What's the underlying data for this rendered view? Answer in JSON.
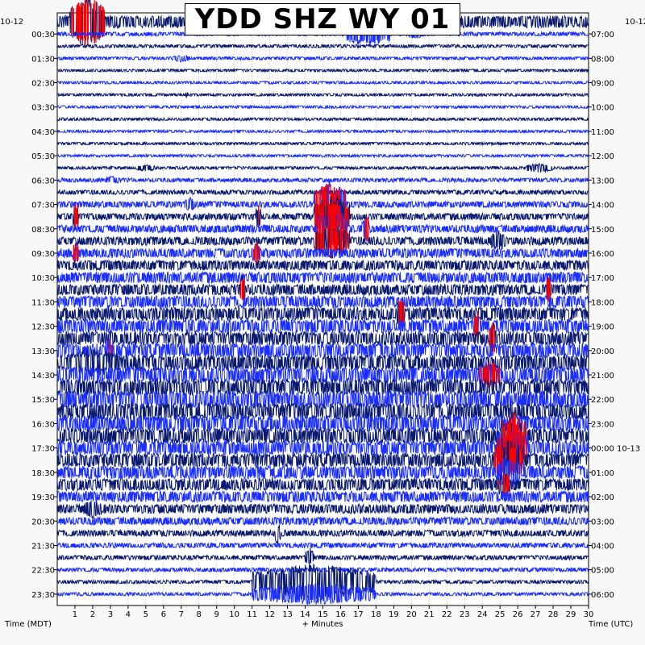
{
  "chart_data": {
    "type": "heatmap",
    "title": "YDD SHZ WY 01",
    "xlabel": "+ Minutes",
    "left_axis_label": "Time (MDT)",
    "right_axis_label": "Time (UTC)",
    "left_date": "10-12",
    "right_date": "10-12",
    "right_date_change": "10-13",
    "x_range": [
      0,
      30
    ],
    "x_ticks": [
      "1",
      "2",
      "3",
      "4",
      "5",
      "6",
      "7",
      "8",
      "9",
      "10",
      "11",
      "12",
      "13",
      "14",
      "15",
      "16",
      "17",
      "18",
      "19",
      "20",
      "21",
      "22",
      "23",
      "24",
      "25",
      "26",
      "27",
      "28",
      "29",
      "30"
    ],
    "left_ticks": [
      "00:30",
      "01:30",
      "02:30",
      "03:30",
      "04:30",
      "05:30",
      "06:30",
      "07:30",
      "08:30",
      "09:30",
      "10:30",
      "11:30",
      "12:30",
      "13:30",
      "14:30",
      "15:30",
      "16:30",
      "17:30",
      "18:30",
      "19:30",
      "20:30",
      "21:30",
      "22:30",
      "23:30"
    ],
    "right_ticks": [
      "07:00",
      "08:00",
      "09:00",
      "10:00",
      "11:00",
      "12:00",
      "13:00",
      "14:00",
      "15:00",
      "16:00",
      "17:00",
      "18:00",
      "19:00",
      "20:00",
      "21:00",
      "22:00",
      "23:00",
      "00:00 10-13",
      "01:00",
      "02:00",
      "03:00",
      "04:00",
      "05:00",
      "06:00"
    ],
    "row_count": 48,
    "row_minutes": 30,
    "grid": true,
    "colors": {
      "trace_dark": "#0a1a6e",
      "trace_light": "#1a2eff",
      "clipped": "#ff0000"
    },
    "row_amplitude": [
      0.55,
      0.18,
      0.15,
      0.14,
      0.12,
      0.12,
      0.12,
      0.12,
      0.13,
      0.12,
      0.12,
      0.12,
      0.14,
      0.18,
      0.2,
      0.28,
      0.3,
      0.35,
      0.38,
      0.42,
      0.45,
      0.5,
      0.5,
      0.55,
      0.6,
      0.62,
      0.62,
      0.65,
      0.7,
      0.72,
      0.72,
      0.75,
      0.75,
      0.72,
      0.7,
      0.65,
      0.62,
      0.6,
      0.55,
      0.5,
      0.42,
      0.35,
      0.28,
      0.22,
      0.2,
      0.18,
      0.16,
      0.15
    ],
    "events": [
      {
        "row": 0,
        "minute_start": 0.7,
        "minute_end": 2.7,
        "amp": 2.2,
        "clipped": true
      },
      {
        "row": 0,
        "minute_start": 2.8,
        "minute_end": 4.0,
        "amp": 0.6,
        "clipped": false
      },
      {
        "row": 1,
        "minute_start": 16.3,
        "minute_end": 18.8,
        "amp": 1.1,
        "clipped": false
      },
      {
        "row": 1,
        "minute_start": 19.8,
        "minute_end": 20.8,
        "amp": 0.4,
        "clipped": false
      },
      {
        "row": 3,
        "minute_start": 6.5,
        "minute_end": 7.5,
        "amp": 0.3,
        "clipped": false
      },
      {
        "row": 6,
        "minute_start": 7.2,
        "minute_end": 7.4,
        "amp": 0.25,
        "clipped": false
      },
      {
        "row": 12,
        "minute_start": 4.5,
        "minute_end": 5.5,
        "amp": 0.3,
        "clipped": false
      },
      {
        "row": 12,
        "minute_start": 26.5,
        "minute_end": 28.0,
        "amp": 0.4,
        "clipped": false
      },
      {
        "row": 13,
        "minute_start": 2.7,
        "minute_end": 3.5,
        "amp": 0.35,
        "clipped": false
      },
      {
        "row": 15,
        "minute_start": 14.5,
        "minute_end": 16.3,
        "amp": 2.0,
        "clipped": true
      },
      {
        "row": 15,
        "minute_start": 7.2,
        "minute_end": 7.8,
        "amp": 0.6,
        "clipped": false
      },
      {
        "row": 16,
        "minute_start": 14.5,
        "minute_end": 16.5,
        "amp": 1.8,
        "clipped": true
      },
      {
        "row": 16,
        "minute_start": 0.9,
        "minute_end": 1.2,
        "amp": 1.2,
        "clipped": true
      },
      {
        "row": 16,
        "minute_start": 11.2,
        "minute_end": 11.5,
        "amp": 1.0,
        "clipped": true
      },
      {
        "row": 17,
        "minute_start": 14.6,
        "minute_end": 16.4,
        "amp": 1.8,
        "clipped": true
      },
      {
        "row": 17,
        "minute_start": 17.2,
        "minute_end": 17.6,
        "amp": 1.3,
        "clipped": true
      },
      {
        "row": 18,
        "minute_start": 14.5,
        "minute_end": 16.5,
        "amp": 1.5,
        "clipped": true
      },
      {
        "row": 18,
        "minute_start": 24.5,
        "minute_end": 25.3,
        "amp": 0.9,
        "clipped": false
      },
      {
        "row": 19,
        "minute_start": 0.9,
        "minute_end": 1.2,
        "amp": 1.0,
        "clipped": true
      },
      {
        "row": 19,
        "minute_start": 11.0,
        "minute_end": 11.5,
        "amp": 0.9,
        "clipped": true
      },
      {
        "row": 22,
        "minute_start": 10.3,
        "minute_end": 10.6,
        "amp": 1.5,
        "clipped": true
      },
      {
        "row": 22,
        "minute_start": 27.6,
        "minute_end": 27.9,
        "amp": 1.2,
        "clipped": true
      },
      {
        "row": 24,
        "minute_start": 19.2,
        "minute_end": 19.6,
        "amp": 1.5,
        "clipped": true
      },
      {
        "row": 25,
        "minute_start": 23.5,
        "minute_end": 23.9,
        "amp": 1.4,
        "clipped": true
      },
      {
        "row": 26,
        "minute_start": 24.4,
        "minute_end": 24.8,
        "amp": 1.4,
        "clipped": true
      },
      {
        "row": 27,
        "minute_start": 2.8,
        "minute_end": 3.1,
        "amp": 1.3,
        "clipped": true
      },
      {
        "row": 28,
        "minute_start": 0.5,
        "minute_end": 3.5,
        "amp": 1.2,
        "clipped": false
      },
      {
        "row": 29,
        "minute_start": 23.8,
        "minute_end": 25.0,
        "amp": 1.2,
        "clipped": true
      },
      {
        "row": 34,
        "minute_start": 25.0,
        "minute_end": 26.5,
        "amp": 2.0,
        "clipped": true
      },
      {
        "row": 35,
        "minute_start": 24.8,
        "minute_end": 26.6,
        "amp": 2.0,
        "clipped": true
      },
      {
        "row": 36,
        "minute_start": 24.6,
        "minute_end": 26.4,
        "amp": 1.8,
        "clipped": true
      },
      {
        "row": 37,
        "minute_start": 24.8,
        "minute_end": 26.2,
        "amp": 1.5,
        "clipped": false
      },
      {
        "row": 38,
        "minute_start": 24.9,
        "minute_end": 25.6,
        "amp": 1.2,
        "clipped": true
      },
      {
        "row": 40,
        "minute_start": 1.5,
        "minute_end": 2.5,
        "amp": 0.8,
        "clipped": false
      },
      {
        "row": 42,
        "minute_start": 12.3,
        "minute_end": 12.6,
        "amp": 1.0,
        "clipped": false
      },
      {
        "row": 44,
        "minute_start": 14.0,
        "minute_end": 14.5,
        "amp": 0.9,
        "clipped": false
      },
      {
        "row": 46,
        "minute_start": 11.0,
        "minute_end": 18.0,
        "amp": 1.5,
        "clipped": false
      },
      {
        "row": 47,
        "minute_start": 11.0,
        "minute_end": 18.0,
        "amp": 0.9,
        "clipped": false
      }
    ]
  }
}
